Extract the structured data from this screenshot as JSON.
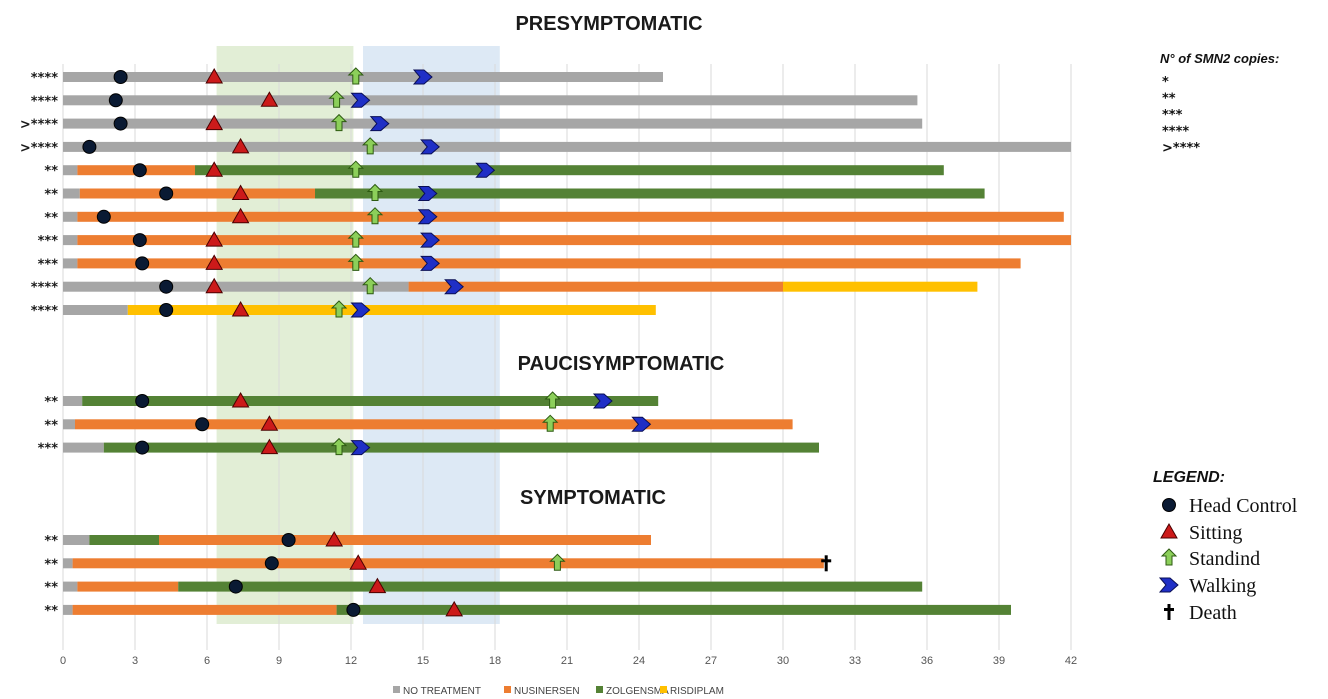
{
  "chart_data": {
    "type": "bar",
    "orientation": "horizontal-timeline",
    "x_ticks": [
      "0",
      "3",
      "6",
      "9",
      "12",
      "15",
      "18",
      "21",
      "24",
      "27",
      "30",
      "33",
      "36",
      "39",
      "42"
    ],
    "xlim": [
      0,
      42
    ],
    "grid": true,
    "shaded_regions": [
      {
        "from": 6.4,
        "to": 12.1,
        "color": "#e2eed6"
      },
      {
        "from": 12.5,
        "to": 18.2,
        "color": "#dde9f5"
      }
    ],
    "treatment_colors": {
      "NO TREATMENT": "#a6a6a6",
      "NUSINERSEN": "#ed7d31",
      "ZOLGENSMA": "#548235",
      "RISDIPLAM": "#ffc000"
    },
    "milestone_colors": {
      "head": "#0a1a33",
      "sitting": "#cc1a1a",
      "standing": "#8ccf5a",
      "walking": "#1f2fc6",
      "death": "#000000"
    },
    "groups": [
      {
        "title": "PRESYMPTOMATIC",
        "rows": [
          {
            "copies": "****",
            "segments": [
              {
                "t": "NO TREATMENT",
                "from": 0,
                "to": 25
              }
            ],
            "head": 2.4,
            "sitting": 6.3,
            "standing": 12.2,
            "walking": 15.0
          },
          {
            "copies": "****",
            "segments": [
              {
                "t": "NO TREATMENT",
                "from": 0,
                "to": 35.6
              }
            ],
            "head": 2.2,
            "sitting": 8.6,
            "standing": 11.4,
            "walking": 12.4
          },
          {
            "copies": ">****",
            "segments": [
              {
                "t": "NO TREATMENT",
                "from": 0,
                "to": 35.8
              }
            ],
            "head": 2.4,
            "sitting": 6.3,
            "standing": 11.5,
            "walking": 13.2
          },
          {
            "copies": ">****",
            "segments": [
              {
                "t": "NO TREATMENT",
                "from": 0,
                "to": 42
              }
            ],
            "head": 1.1,
            "sitting": 7.4,
            "standing": 12.8,
            "walking": 15.3
          },
          {
            "copies": "**",
            "segments": [
              {
                "t": "NO TREATMENT",
                "from": 0,
                "to": 0.6
              },
              {
                "t": "NUSINERSEN",
                "from": 0.6,
                "to": 5.5
              },
              {
                "t": "ZOLGENSMA",
                "from": 5.5,
                "to": 36.7
              }
            ],
            "head": 3.2,
            "sitting": 6.3,
            "standing": 12.2,
            "walking": 17.6
          },
          {
            "copies": "**",
            "segments": [
              {
                "t": "NO TREATMENT",
                "from": 0,
                "to": 0.7
              },
              {
                "t": "NUSINERSEN",
                "from": 0.7,
                "to": 10.5
              },
              {
                "t": "ZOLGENSMA",
                "from": 10.5,
                "to": 38.4
              }
            ],
            "head": 4.3,
            "sitting": 7.4,
            "standing": 13.0,
            "walking": 15.2
          },
          {
            "copies": "**",
            "segments": [
              {
                "t": "NO TREATMENT",
                "from": 0,
                "to": 0.6
              },
              {
                "t": "NUSINERSEN",
                "from": 0.6,
                "to": 41.7
              }
            ],
            "head": 1.7,
            "sitting": 7.4,
            "standing": 13.0,
            "walking": 15.2
          },
          {
            "copies": "***",
            "segments": [
              {
                "t": "NO TREATMENT",
                "from": 0,
                "to": 0.6
              },
              {
                "t": "NUSINERSEN",
                "from": 0.6,
                "to": 42
              }
            ],
            "head": 3.2,
            "sitting": 6.3,
            "standing": 12.2,
            "walking": 15.3
          },
          {
            "copies": "***",
            "segments": [
              {
                "t": "NO TREATMENT",
                "from": 0,
                "to": 0.6
              },
              {
                "t": "NUSINERSEN",
                "from": 0.6,
                "to": 39.9
              }
            ],
            "head": 3.3,
            "sitting": 6.3,
            "standing": 12.2,
            "walking": 15.3
          },
          {
            "copies": "****",
            "segments": [
              {
                "t": "NO TREATMENT",
                "from": 0,
                "to": 14.4
              },
              {
                "t": "NUSINERSEN",
                "from": 14.4,
                "to": 30
              },
              {
                "t": "RISDIPLAM",
                "from": 30,
                "to": 38.1
              }
            ],
            "head": 4.3,
            "sitting": 6.3,
            "standing": 12.8,
            "walking": 16.3
          },
          {
            "copies": "****",
            "segments": [
              {
                "t": "NO TREATMENT",
                "from": 0,
                "to": 2.7
              },
              {
                "t": "RISDIPLAM",
                "from": 2.7,
                "to": 24.7
              }
            ],
            "head": 4.3,
            "sitting": 7.4,
            "standing": 11.5,
            "walking": 12.4
          }
        ]
      },
      {
        "title": "PAUCISYMPTOMATIC",
        "rows": [
          {
            "copies": "**",
            "segments": [
              {
                "t": "NO TREATMENT",
                "from": 0,
                "to": 0.8
              },
              {
                "t": "ZOLGENSMA",
                "from": 0.8,
                "to": 24.8
              }
            ],
            "head": 3.3,
            "sitting": 7.4,
            "standing": 20.4,
            "walking": 22.5
          },
          {
            "copies": "**",
            "segments": [
              {
                "t": "NO TREATMENT",
                "from": 0,
                "to": 0.5
              },
              {
                "t": "NUSINERSEN",
                "from": 0.5,
                "to": 30.4
              }
            ],
            "head": 5.8,
            "sitting": 8.6,
            "standing": 20.3,
            "walking": 24.1
          },
          {
            "copies": "***",
            "segments": [
              {
                "t": "NO TREATMENT",
                "from": 0,
                "to": 1.7
              },
              {
                "t": "ZOLGENSMA",
                "from": 1.7,
                "to": 31.5
              }
            ],
            "head": 3.3,
            "sitting": 8.6,
            "standing": 11.5,
            "walking": 12.4
          }
        ]
      },
      {
        "title": "SYMPTOMATIC",
        "rows": [
          {
            "copies": "**",
            "segments": [
              {
                "t": "NO TREATMENT",
                "from": 0,
                "to": 1.1
              },
              {
                "t": "ZOLGENSMA",
                "from": 1.1,
                "to": 4.0
              },
              {
                "t": "NUSINERSEN",
                "from": 4.0,
                "to": 24.5
              }
            ],
            "head": 9.4,
            "sitting": 11.3
          },
          {
            "copies": "**",
            "segments": [
              {
                "t": "NO TREATMENT",
                "from": 0,
                "to": 0.4
              },
              {
                "t": "NUSINERSEN",
                "from": 0.4,
                "to": 31.7
              }
            ],
            "head": 8.7,
            "sitting": 12.3,
            "standing": 20.6,
            "death": 31.8
          },
          {
            "copies": "**",
            "segments": [
              {
                "t": "NO TREATMENT",
                "from": 0,
                "to": 0.6
              },
              {
                "t": "NUSINERSEN",
                "from": 0.6,
                "to": 4.8
              },
              {
                "t": "ZOLGENSMA",
                "from": 4.8,
                "to": 35.8
              }
            ],
            "head": 7.2,
            "sitting": 13.1
          },
          {
            "copies": "**",
            "segments": [
              {
                "t": "NO TREATMENT",
                "from": 0,
                "to": 0.4
              },
              {
                "t": "NUSINERSEN",
                "from": 0.4,
                "to": 11.4
              },
              {
                "t": "ZOLGENSMA",
                "from": 11.4,
                "to": 39.5
              }
            ],
            "head": 12.1,
            "sitting": 16.3
          }
        ]
      }
    ],
    "treatment_legend": [
      "NO TREATMENT",
      "NUSINERSEN",
      "ZOLGENSMA",
      "RISDIPLAM"
    ],
    "smn2": {
      "title": "N° of SMN2 copies:",
      "items": [
        "*",
        "**",
        "***",
        "****",
        ">****"
      ]
    },
    "milestone_legend": {
      "title": "LEGEND:",
      "items": [
        {
          "key": "head",
          "label": "Head Control"
        },
        {
          "key": "sitting",
          "label": "Sitting"
        },
        {
          "key": "standing",
          "label": "Standind"
        },
        {
          "key": "walking",
          "label": "Walking"
        },
        {
          "key": "death",
          "label": "Death"
        }
      ]
    }
  }
}
